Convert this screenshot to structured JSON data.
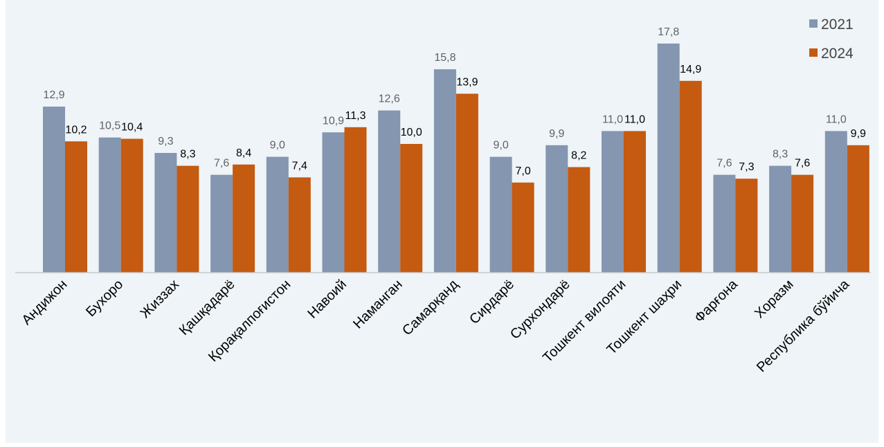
{
  "chart_data": {
    "type": "bar",
    "categories": [
      "Андижон",
      "Бухоро",
      "Жиззах",
      "Қашқадарё",
      "Қорақалпоғистон",
      "Навоий",
      "Наманган",
      "Самарқанд",
      "Сирдарё",
      "Сурхондарё",
      "Тошкент вилояти",
      "Тошкент шаҳри",
      "Фарғона",
      "Хоразм",
      "Республика бўйича"
    ],
    "series": [
      {
        "name": "2021",
        "color": "#8496b0",
        "values": [
          12.9,
          10.5,
          9.3,
          7.6,
          9.0,
          10.9,
          12.6,
          15.8,
          9.0,
          9.9,
          11.0,
          17.8,
          7.6,
          8.3,
          11.0
        ],
        "labels": [
          "12,9",
          "10,5",
          "9,3",
          "7,6",
          "9,0",
          "10,9",
          "12,6",
          "15,8",
          "9,0",
          "9,9",
          "11,0",
          "17,8",
          "7,6",
          "8,3",
          "11,0"
        ]
      },
      {
        "name": "2024",
        "color": "#c55a11",
        "values": [
          10.2,
          10.4,
          8.3,
          8.4,
          7.4,
          11.3,
          10.0,
          13.9,
          7.0,
          8.2,
          11.0,
          14.9,
          7.3,
          7.6,
          9.9
        ],
        "labels": [
          "10,2",
          "10,4",
          "8,3",
          "8,4",
          "7,4",
          "11,3",
          "10,0",
          "13,9",
          "7,0",
          "8,2",
          "11,0",
          "14,9",
          "7,3",
          "7,6",
          "9,9"
        ]
      }
    ],
    "ylim": [
      0,
      20
    ],
    "grid": false,
    "legend_position": "top-right"
  }
}
